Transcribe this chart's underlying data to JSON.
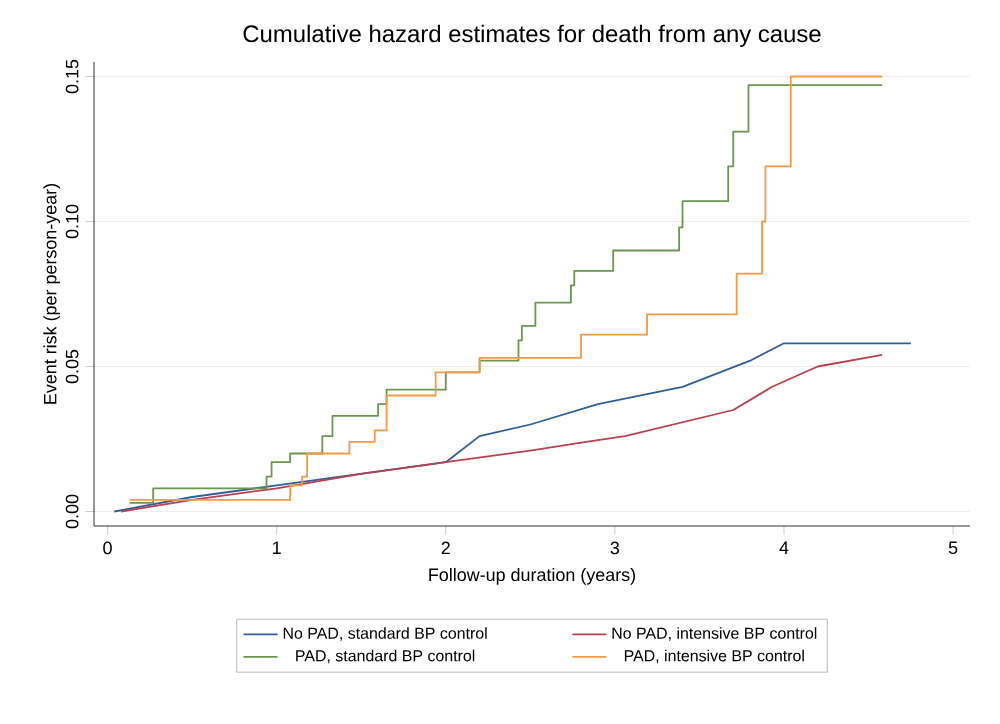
{
  "chart_data": {
    "type": "line",
    "title": "Cumulative hazard estimates for death from any cause",
    "xlabel": "Follow-up duration (years)",
    "ylabel": "Event risk (per person-year)",
    "xlim": [
      -0.08,
      5.1
    ],
    "ylim": [
      -0.005,
      0.155
    ],
    "xticks": [
      0,
      1,
      2,
      3,
      4,
      5
    ],
    "yticks": [
      {
        "value": 0,
        "label": "0.00"
      },
      {
        "value": 0.05,
        "label": "0.05"
      },
      {
        "value": 0.1,
        "label": "0.10"
      },
      {
        "value": 0.15,
        "label": "0.15"
      }
    ],
    "grid": "y",
    "legend": "bottom",
    "series": [
      {
        "name": "No PAD, standard BP control",
        "color": "#2f5f98",
        "x": [
          0.04,
          0.5,
          1.0,
          1.5,
          2.0,
          2.2,
          2.5,
          2.9,
          3.4,
          3.8,
          4.0,
          4.75
        ],
        "values": [
          0,
          0.005,
          0.009,
          0.013,
          0.017,
          0.026,
          0.03,
          0.037,
          0.043,
          0.052,
          0.058,
          0.058
        ]
      },
      {
        "name": "No PAD, intensive BP control",
        "color": "#b8404f",
        "x": [
          0.08,
          0.5,
          1.0,
          1.5,
          2.0,
          2.5,
          2.83,
          3.06,
          3.7,
          3.93,
          4.2,
          4.58
        ],
        "values": [
          0,
          0.004,
          0.008,
          0.013,
          0.017,
          0.021,
          0.024,
          0.026,
          0.035,
          0.043,
          0.05,
          0.054
        ]
      },
      {
        "name": "PAD, standard BP control",
        "color": "#6b9650",
        "type": "step",
        "x": [
          0.13,
          0.27,
          0.94,
          0.97,
          1.08,
          1.27,
          1.33,
          1.6,
          1.65,
          2.0,
          2.2,
          2.43,
          2.45,
          2.53,
          2.74,
          2.76,
          2.99,
          3.38,
          3.4,
          3.67,
          3.7,
          3.79,
          4.58
        ],
        "values": [
          0.003,
          0.008,
          0.012,
          0.017,
          0.02,
          0.026,
          0.033,
          0.037,
          0.042,
          0.048,
          0.052,
          0.059,
          0.064,
          0.072,
          0.078,
          0.083,
          0.09,
          0.098,
          0.107,
          0.119,
          0.131,
          0.147,
          0.147
        ]
      },
      {
        "name": "PAD, intensive BP control",
        "color": "#f39a45",
        "type": "step",
        "x": [
          0.13,
          1.08,
          1.15,
          1.18,
          1.43,
          1.58,
          1.65,
          1.94,
          2.2,
          2.8,
          3.19,
          3.72,
          3.87,
          3.89,
          4.04,
          4.58
        ],
        "values": [
          0.004,
          0.009,
          0.012,
          0.02,
          0.024,
          0.028,
          0.04,
          0.048,
          0.053,
          0.061,
          0.068,
          0.082,
          0.1,
          0.119,
          0.15,
          0.15
        ]
      }
    ]
  }
}
